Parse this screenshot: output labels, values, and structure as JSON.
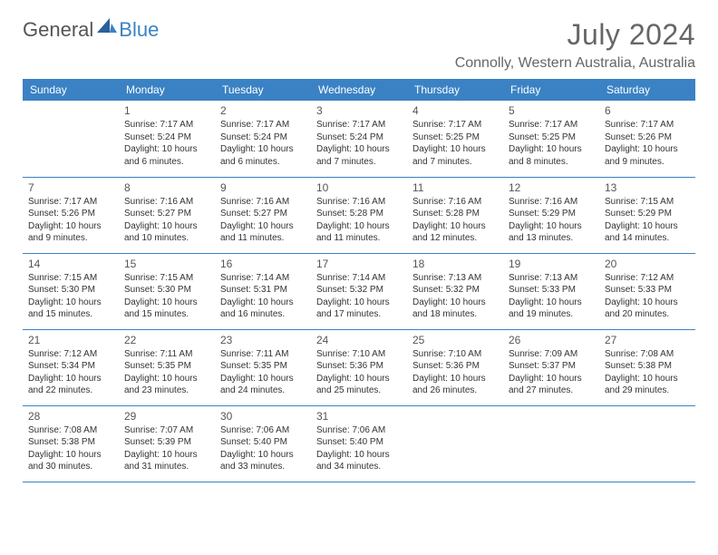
{
  "logo": {
    "general": "General",
    "blue": "Blue"
  },
  "title": "July 2024",
  "location": "Connolly, Western Australia, Australia",
  "colors": {
    "header_bg": "#3b82c4",
    "header_text": "#ffffff",
    "border": "#3b82c4",
    "text": "#333333",
    "title_text": "#666666"
  },
  "day_names": [
    "Sunday",
    "Monday",
    "Tuesday",
    "Wednesday",
    "Thursday",
    "Friday",
    "Saturday"
  ],
  "weeks": [
    [
      {
        "n": "",
        "sr": "",
        "ss": "",
        "d1": "",
        "d2": ""
      },
      {
        "n": "1",
        "sr": "Sunrise: 7:17 AM",
        "ss": "Sunset: 5:24 PM",
        "d1": "Daylight: 10 hours",
        "d2": "and 6 minutes."
      },
      {
        "n": "2",
        "sr": "Sunrise: 7:17 AM",
        "ss": "Sunset: 5:24 PM",
        "d1": "Daylight: 10 hours",
        "d2": "and 6 minutes."
      },
      {
        "n": "3",
        "sr": "Sunrise: 7:17 AM",
        "ss": "Sunset: 5:24 PM",
        "d1": "Daylight: 10 hours",
        "d2": "and 7 minutes."
      },
      {
        "n": "4",
        "sr": "Sunrise: 7:17 AM",
        "ss": "Sunset: 5:25 PM",
        "d1": "Daylight: 10 hours",
        "d2": "and 7 minutes."
      },
      {
        "n": "5",
        "sr": "Sunrise: 7:17 AM",
        "ss": "Sunset: 5:25 PM",
        "d1": "Daylight: 10 hours",
        "d2": "and 8 minutes."
      },
      {
        "n": "6",
        "sr": "Sunrise: 7:17 AM",
        "ss": "Sunset: 5:26 PM",
        "d1": "Daylight: 10 hours",
        "d2": "and 9 minutes."
      }
    ],
    [
      {
        "n": "7",
        "sr": "Sunrise: 7:17 AM",
        "ss": "Sunset: 5:26 PM",
        "d1": "Daylight: 10 hours",
        "d2": "and 9 minutes."
      },
      {
        "n": "8",
        "sr": "Sunrise: 7:16 AM",
        "ss": "Sunset: 5:27 PM",
        "d1": "Daylight: 10 hours",
        "d2": "and 10 minutes."
      },
      {
        "n": "9",
        "sr": "Sunrise: 7:16 AM",
        "ss": "Sunset: 5:27 PM",
        "d1": "Daylight: 10 hours",
        "d2": "and 11 minutes."
      },
      {
        "n": "10",
        "sr": "Sunrise: 7:16 AM",
        "ss": "Sunset: 5:28 PM",
        "d1": "Daylight: 10 hours",
        "d2": "and 11 minutes."
      },
      {
        "n": "11",
        "sr": "Sunrise: 7:16 AM",
        "ss": "Sunset: 5:28 PM",
        "d1": "Daylight: 10 hours",
        "d2": "and 12 minutes."
      },
      {
        "n": "12",
        "sr": "Sunrise: 7:16 AM",
        "ss": "Sunset: 5:29 PM",
        "d1": "Daylight: 10 hours",
        "d2": "and 13 minutes."
      },
      {
        "n": "13",
        "sr": "Sunrise: 7:15 AM",
        "ss": "Sunset: 5:29 PM",
        "d1": "Daylight: 10 hours",
        "d2": "and 14 minutes."
      }
    ],
    [
      {
        "n": "14",
        "sr": "Sunrise: 7:15 AM",
        "ss": "Sunset: 5:30 PM",
        "d1": "Daylight: 10 hours",
        "d2": "and 15 minutes."
      },
      {
        "n": "15",
        "sr": "Sunrise: 7:15 AM",
        "ss": "Sunset: 5:30 PM",
        "d1": "Daylight: 10 hours",
        "d2": "and 15 minutes."
      },
      {
        "n": "16",
        "sr": "Sunrise: 7:14 AM",
        "ss": "Sunset: 5:31 PM",
        "d1": "Daylight: 10 hours",
        "d2": "and 16 minutes."
      },
      {
        "n": "17",
        "sr": "Sunrise: 7:14 AM",
        "ss": "Sunset: 5:32 PM",
        "d1": "Daylight: 10 hours",
        "d2": "and 17 minutes."
      },
      {
        "n": "18",
        "sr": "Sunrise: 7:13 AM",
        "ss": "Sunset: 5:32 PM",
        "d1": "Daylight: 10 hours",
        "d2": "and 18 minutes."
      },
      {
        "n": "19",
        "sr": "Sunrise: 7:13 AM",
        "ss": "Sunset: 5:33 PM",
        "d1": "Daylight: 10 hours",
        "d2": "and 19 minutes."
      },
      {
        "n": "20",
        "sr": "Sunrise: 7:12 AM",
        "ss": "Sunset: 5:33 PM",
        "d1": "Daylight: 10 hours",
        "d2": "and 20 minutes."
      }
    ],
    [
      {
        "n": "21",
        "sr": "Sunrise: 7:12 AM",
        "ss": "Sunset: 5:34 PM",
        "d1": "Daylight: 10 hours",
        "d2": "and 22 minutes."
      },
      {
        "n": "22",
        "sr": "Sunrise: 7:11 AM",
        "ss": "Sunset: 5:35 PM",
        "d1": "Daylight: 10 hours",
        "d2": "and 23 minutes."
      },
      {
        "n": "23",
        "sr": "Sunrise: 7:11 AM",
        "ss": "Sunset: 5:35 PM",
        "d1": "Daylight: 10 hours",
        "d2": "and 24 minutes."
      },
      {
        "n": "24",
        "sr": "Sunrise: 7:10 AM",
        "ss": "Sunset: 5:36 PM",
        "d1": "Daylight: 10 hours",
        "d2": "and 25 minutes."
      },
      {
        "n": "25",
        "sr": "Sunrise: 7:10 AM",
        "ss": "Sunset: 5:36 PM",
        "d1": "Daylight: 10 hours",
        "d2": "and 26 minutes."
      },
      {
        "n": "26",
        "sr": "Sunrise: 7:09 AM",
        "ss": "Sunset: 5:37 PM",
        "d1": "Daylight: 10 hours",
        "d2": "and 27 minutes."
      },
      {
        "n": "27",
        "sr": "Sunrise: 7:08 AM",
        "ss": "Sunset: 5:38 PM",
        "d1": "Daylight: 10 hours",
        "d2": "and 29 minutes."
      }
    ],
    [
      {
        "n": "28",
        "sr": "Sunrise: 7:08 AM",
        "ss": "Sunset: 5:38 PM",
        "d1": "Daylight: 10 hours",
        "d2": "and 30 minutes."
      },
      {
        "n": "29",
        "sr": "Sunrise: 7:07 AM",
        "ss": "Sunset: 5:39 PM",
        "d1": "Daylight: 10 hours",
        "d2": "and 31 minutes."
      },
      {
        "n": "30",
        "sr": "Sunrise: 7:06 AM",
        "ss": "Sunset: 5:40 PM",
        "d1": "Daylight: 10 hours",
        "d2": "and 33 minutes."
      },
      {
        "n": "31",
        "sr": "Sunrise: 7:06 AM",
        "ss": "Sunset: 5:40 PM",
        "d1": "Daylight: 10 hours",
        "d2": "and 34 minutes."
      },
      {
        "n": "",
        "sr": "",
        "ss": "",
        "d1": "",
        "d2": ""
      },
      {
        "n": "",
        "sr": "",
        "ss": "",
        "d1": "",
        "d2": ""
      },
      {
        "n": "",
        "sr": "",
        "ss": "",
        "d1": "",
        "d2": ""
      }
    ]
  ]
}
